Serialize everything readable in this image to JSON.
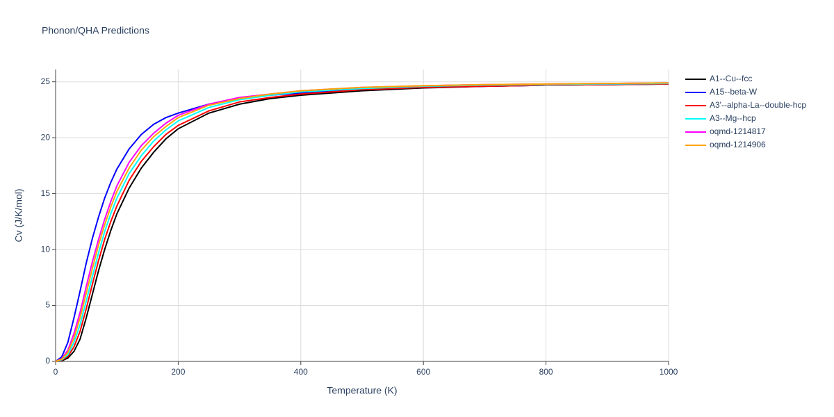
{
  "chart_data": {
    "type": "line",
    "title": "Phonon/QHA Predictions",
    "x_label": "Temperature (K)",
    "y_label": "Cv (J/K/mol)",
    "x": [
      0,
      10,
      20,
      30,
      40,
      50,
      60,
      70,
      80,
      90,
      100,
      120,
      140,
      160,
      180,
      200,
      250,
      300,
      350,
      400,
      500,
      600,
      700,
      800,
      900,
      1000
    ],
    "series": [
      {
        "name": "A1--Cu--fcc",
        "color": "#000000",
        "values": [
          0,
          0.05,
          0.3,
          0.9,
          2.0,
          3.9,
          6.0,
          8.1,
          10.0,
          11.7,
          13.2,
          15.5,
          17.3,
          18.7,
          19.9,
          20.8,
          22.2,
          23.0,
          23.5,
          23.8,
          24.2,
          24.45,
          24.6,
          24.7,
          24.75,
          24.8
        ]
      },
      {
        "name": "A15--beta-W",
        "color": "#0000ff",
        "values": [
          0,
          0.4,
          1.7,
          3.9,
          6.3,
          8.8,
          11.0,
          12.9,
          14.6,
          16.0,
          17.2,
          19.0,
          20.3,
          21.2,
          21.8,
          22.2,
          23.0,
          23.5,
          23.8,
          24.0,
          24.3,
          24.5,
          24.6,
          24.7,
          24.75,
          24.8
        ]
      },
      {
        "name": "A3'--alpha-La--double-hcp",
        "color": "#ff0000",
        "values": [
          0,
          0.1,
          0.45,
          1.3,
          2.7,
          4.7,
          6.9,
          9.0,
          10.9,
          12.5,
          13.9,
          16.2,
          17.9,
          19.2,
          20.3,
          21.1,
          22.4,
          23.2,
          23.6,
          23.9,
          24.3,
          24.5,
          24.6,
          24.7,
          24.75,
          24.8
        ]
      },
      {
        "name": "A3--Mg--hcp",
        "color": "#00ffff",
        "values": [
          0,
          0.15,
          0.6,
          1.7,
          3.3,
          5.4,
          7.6,
          9.7,
          11.6,
          13.2,
          14.6,
          16.8,
          18.4,
          19.7,
          20.7,
          21.5,
          22.7,
          23.4,
          23.8,
          24.1,
          24.4,
          24.6,
          24.7,
          24.75,
          24.8,
          24.85
        ]
      },
      {
        "name": "oqmd-1214817",
        "color": "#ff00ff",
        "values": [
          0,
          0.25,
          1.0,
          2.5,
          4.4,
          6.7,
          8.9,
          10.9,
          12.7,
          14.3,
          15.7,
          17.8,
          19.3,
          20.4,
          21.3,
          22.0,
          23.0,
          23.6,
          23.9,
          24.2,
          24.5,
          24.65,
          24.75,
          24.8,
          24.85,
          24.9
        ]
      },
      {
        "name": "oqmd-1214906",
        "color": "#ffa500",
        "values": [
          0,
          0.2,
          0.8,
          2.1,
          3.9,
          6.1,
          8.3,
          10.4,
          12.2,
          13.8,
          15.2,
          17.3,
          18.9,
          20.1,
          21.0,
          21.8,
          22.9,
          23.5,
          23.9,
          24.2,
          24.5,
          24.65,
          24.75,
          24.8,
          24.85,
          24.9
        ]
      }
    ],
    "xlim": [
      0,
      1000
    ],
    "xticks": [
      0,
      200,
      400,
      600,
      800,
      1000
    ],
    "ylim": [
      0,
      26.1
    ],
    "yticks": [
      0,
      5,
      10,
      15,
      20,
      25
    ],
    "grid": true,
    "legend": "right"
  }
}
